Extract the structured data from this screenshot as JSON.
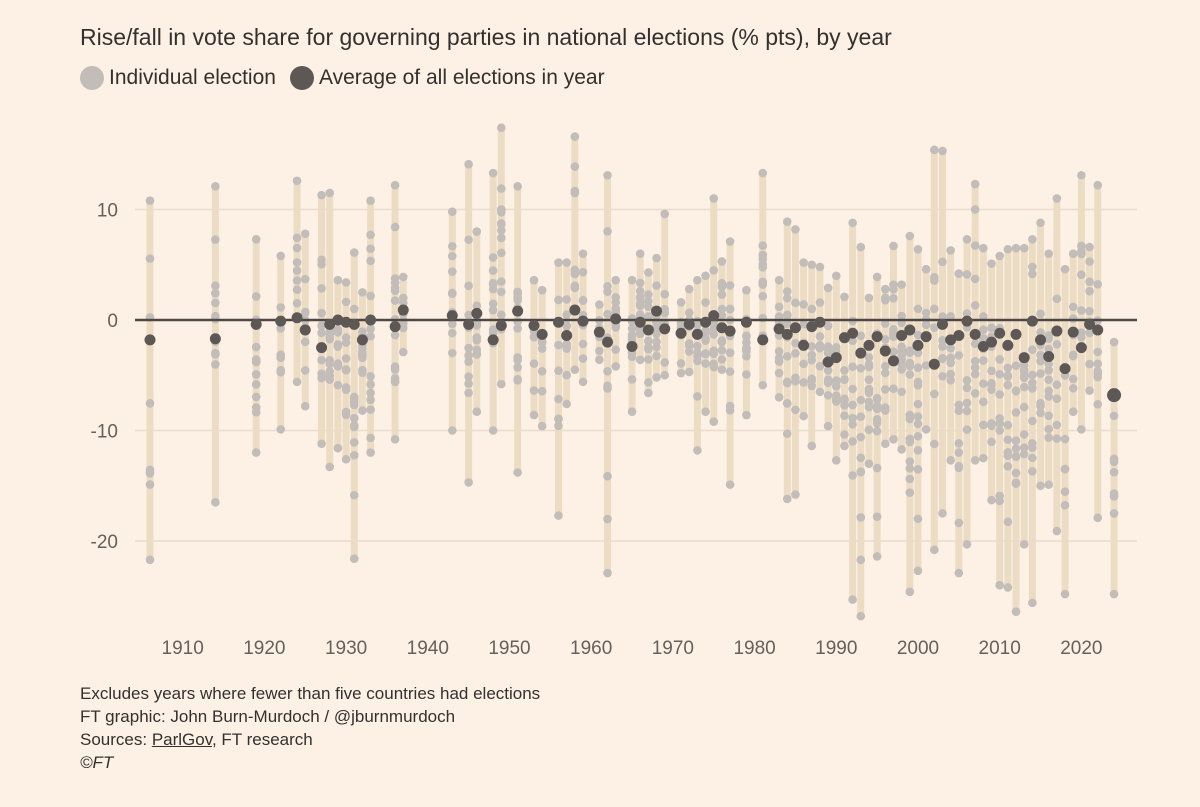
{
  "subtitle": "Rise/fall in vote share for governing parties in national elections (% pts), by year",
  "legend": {
    "individual": "Individual election",
    "average": "Average of all elections in year"
  },
  "notes": {
    "line1": "Excludes years where fewer than five countries had elections",
    "line2": "FT graphic: John Burn-Murdoch / @jburnmurdoch",
    "sources_prefix": "Sources: ",
    "sources_link": "ParlGov",
    "sources_suffix": ", FT research",
    "copyright": "©FT"
  },
  "colors": {
    "background": "#fdf1e6",
    "range_bar": "#eddcc4",
    "individual_dot": "#c2bdb8",
    "average_dot": "#5d5855",
    "zero_line": "#4d4845",
    "gridline": "#e8dccd",
    "text": "#33302e"
  },
  "chart_data": {
    "type": "scatter",
    "title": "",
    "subtitle": "Rise/fall in vote share for governing parties in national elections (% pts), by year",
    "xlabel": "",
    "ylabel": "",
    "xlim": [
      1903,
      2026
    ],
    "ylim": [
      -28,
      19
    ],
    "x_ticks": [
      1910,
      1920,
      1930,
      1940,
      1950,
      1960,
      1970,
      1980,
      1990,
      2000,
      2010,
      2020
    ],
    "y_ticks": [
      10,
      0,
      -10,
      -20
    ],
    "y_tick_labels": [
      "10",
      "0",
      "-10",
      "-20"
    ],
    "grid": "horizontal",
    "legend_position": "top-left",
    "series": [
      {
        "name": "Individual election",
        "marker": "light-dot",
        "role": "individual"
      },
      {
        "name": "Average of all elections in year",
        "marker": "dark-dot",
        "role": "average"
      }
    ],
    "years": [
      {
        "year": 1906,
        "min": -21.7,
        "max": 10.8,
        "avg": -1.8
      },
      {
        "year": 1914,
        "min": -16.5,
        "max": 12.1,
        "avg": -1.7
      },
      {
        "year": 1919,
        "min": -12.0,
        "max": 7.3,
        "avg": -0.4
      },
      {
        "year": 1922,
        "min": -9.9,
        "max": 5.8,
        "avg": -0.1
      },
      {
        "year": 1924,
        "min": -5.6,
        "max": 12.6,
        "avg": 0.2
      },
      {
        "year": 1925,
        "min": -7.8,
        "max": 7.8,
        "avg": -0.9
      },
      {
        "year": 1927,
        "min": -11.2,
        "max": 11.3,
        "avg": -2.5
      },
      {
        "year": 1928,
        "min": -13.3,
        "max": 11.5,
        "avg": -0.4
      },
      {
        "year": 1929,
        "min": -11.6,
        "max": 3.6,
        "avg": 0.0
      },
      {
        "year": 1930,
        "min": -12.6,
        "max": 3.4,
        "avg": -0.2
      },
      {
        "year": 1931,
        "min": -21.6,
        "max": 6.1,
        "avg": -0.4
      },
      {
        "year": 1932,
        "min": -8.2,
        "max": 2.5,
        "avg": -1.8
      },
      {
        "year": 1933,
        "min": -12.0,
        "max": 10.8,
        "avg": 0.0
      },
      {
        "year": 1936,
        "min": -10.8,
        "max": 12.2,
        "avg": -0.6
      },
      {
        "year": 1937,
        "min": -2.9,
        "max": 3.9,
        "avg": 0.9
      },
      {
        "year": 1943,
        "min": -10.0,
        "max": 9.8,
        "avg": 0.4
      },
      {
        "year": 1945,
        "min": -14.7,
        "max": 14.1,
        "avg": -0.4
      },
      {
        "year": 1946,
        "min": -8.3,
        "max": 8.0,
        "avg": 0.6
      },
      {
        "year": 1948,
        "min": -10.0,
        "max": 13.3,
        "avg": -1.8
      },
      {
        "year": 1949,
        "min": -5.8,
        "max": 17.4,
        "avg": -0.5
      },
      {
        "year": 1951,
        "min": -13.8,
        "max": 12.1,
        "avg": 0.8
      },
      {
        "year": 1953,
        "min": -8.6,
        "max": 3.6,
        "avg": -0.5
      },
      {
        "year": 1954,
        "min": -9.6,
        "max": 2.7,
        "avg": -1.3
      },
      {
        "year": 1956,
        "min": -17.7,
        "max": 5.2,
        "avg": -0.2
      },
      {
        "year": 1957,
        "min": -7.6,
        "max": 5.2,
        "avg": -1.4
      },
      {
        "year": 1958,
        "min": -4.5,
        "max": 16.6,
        "avg": 0.9
      },
      {
        "year": 1959,
        "min": -5.6,
        "max": 6.0,
        "avg": -0.1
      },
      {
        "year": 1961,
        "min": -3.6,
        "max": 1.4,
        "avg": -1.1
      },
      {
        "year": 1962,
        "min": -22.9,
        "max": 13.1,
        "avg": -2.0
      },
      {
        "year": 1963,
        "min": -4.2,
        "max": 3.6,
        "avg": 0.1
      },
      {
        "year": 1965,
        "min": -8.3,
        "max": 3.6,
        "avg": -2.4
      },
      {
        "year": 1966,
        "min": -3.6,
        "max": 6.0,
        "avg": -0.2
      },
      {
        "year": 1967,
        "min": -6.6,
        "max": 4.3,
        "avg": -0.9
      },
      {
        "year": 1968,
        "min": -5.2,
        "max": 5.6,
        "avg": 0.8
      },
      {
        "year": 1969,
        "min": -5.0,
        "max": 9.6,
        "avg": -0.8
      },
      {
        "year": 1971,
        "min": -4.8,
        "max": 1.6,
        "avg": -1.2
      },
      {
        "year": 1972,
        "min": -4.7,
        "max": 2.8,
        "avg": -0.4
      },
      {
        "year": 1973,
        "min": -11.8,
        "max": 3.6,
        "avg": -1.3
      },
      {
        "year": 1974,
        "min": -8.3,
        "max": 4.0,
        "avg": -0.2
      },
      {
        "year": 1975,
        "min": -9.2,
        "max": 11.0,
        "avg": 0.4
      },
      {
        "year": 1976,
        "min": -4.5,
        "max": 5.3,
        "avg": -0.7
      },
      {
        "year": 1977,
        "min": -14.9,
        "max": 7.1,
        "avg": -1.0
      },
      {
        "year": 1979,
        "min": -8.6,
        "max": 2.7,
        "avg": -0.2
      },
      {
        "year": 1981,
        "min": -5.9,
        "max": 13.3,
        "avg": -1.8
      },
      {
        "year": 1983,
        "min": -7.0,
        "max": 3.6,
        "avg": -0.8
      },
      {
        "year": 1984,
        "min": -16.2,
        "max": 8.9,
        "avg": -1.3
      },
      {
        "year": 1985,
        "min": -15.8,
        "max": 8.2,
        "avg": -0.7
      },
      {
        "year": 1986,
        "min": -8.7,
        "max": 5.2,
        "avg": -2.3
      },
      {
        "year": 1987,
        "min": -11.4,
        "max": 5.0,
        "avg": -0.6
      },
      {
        "year": 1988,
        "min": -6.5,
        "max": 4.8,
        "avg": -0.2
      },
      {
        "year": 1989,
        "min": -9.6,
        "max": 2.9,
        "avg": -3.8
      },
      {
        "year": 1990,
        "min": -12.7,
        "max": 4.0,
        "avg": -3.4
      },
      {
        "year": 1991,
        "min": -11.4,
        "max": 2.1,
        "avg": -1.6
      },
      {
        "year": 1992,
        "min": -25.3,
        "max": 8.8,
        "avg": -1.2
      },
      {
        "year": 1993,
        "min": -26.8,
        "max": 6.6,
        "avg": -3.0
      },
      {
        "year": 1994,
        "min": -13.0,
        "max": 2.0,
        "avg": -2.3
      },
      {
        "year": 1995,
        "min": -21.4,
        "max": 3.9,
        "avg": -1.5
      },
      {
        "year": 1996,
        "min": -11.2,
        "max": 2.8,
        "avg": -2.8
      },
      {
        "year": 1997,
        "min": -10.8,
        "max": 6.7,
        "avg": -3.7
      },
      {
        "year": 1998,
        "min": -11.7,
        "max": 3.2,
        "avg": -1.4
      },
      {
        "year": 1999,
        "min": -24.6,
        "max": 7.6,
        "avg": -0.9
      },
      {
        "year": 2000,
        "min": -22.7,
        "max": 6.4,
        "avg": -2.3
      },
      {
        "year": 2001,
        "min": -9.9,
        "max": 4.6,
        "avg": -1.5
      },
      {
        "year": 2002,
        "min": -20.8,
        "max": 15.4,
        "avg": -4.0
      },
      {
        "year": 2003,
        "min": -17.5,
        "max": 15.3,
        "avg": -0.4
      },
      {
        "year": 2004,
        "min": -12.7,
        "max": 6.3,
        "avg": -1.8
      },
      {
        "year": 2005,
        "min": -22.9,
        "max": 4.2,
        "avg": -1.4
      },
      {
        "year": 2006,
        "min": -20.3,
        "max": 7.3,
        "avg": -0.1
      },
      {
        "year": 2007,
        "min": -12.7,
        "max": 12.3,
        "avg": -1.3
      },
      {
        "year": 2008,
        "min": -12.5,
        "max": 6.5,
        "avg": -2.4
      },
      {
        "year": 2009,
        "min": -16.3,
        "max": 5.1,
        "avg": -2.0
      },
      {
        "year": 2010,
        "min": -24.0,
        "max": 5.8,
        "avg": -1.2
      },
      {
        "year": 2011,
        "min": -24.2,
        "max": 6.4,
        "avg": -2.3
      },
      {
        "year": 2012,
        "min": -26.4,
        "max": 6.5,
        "avg": -1.3
      },
      {
        "year": 2013,
        "min": -20.3,
        "max": 6.5,
        "avg": -3.4
      },
      {
        "year": 2014,
        "min": -25.6,
        "max": 7.3,
        "avg": -0.1
      },
      {
        "year": 2015,
        "min": -15.0,
        "max": 8.8,
        "avg": -1.8
      },
      {
        "year": 2016,
        "min": -14.9,
        "max": 6.0,
        "avg": -3.3
      },
      {
        "year": 2017,
        "min": -19.1,
        "max": 11.0,
        "avg": -1.0
      },
      {
        "year": 2018,
        "min": -24.8,
        "max": 4.6,
        "avg": -4.4
      },
      {
        "year": 2019,
        "min": -8.3,
        "max": 6.0,
        "avg": -1.1
      },
      {
        "year": 2020,
        "min": -9.9,
        "max": 13.1,
        "avg": -2.5
      },
      {
        "year": 2021,
        "min": -6.4,
        "max": 6.6,
        "avg": -0.4
      },
      {
        "year": 2022,
        "min": -17.9,
        "max": 12.2,
        "avg": -0.9
      },
      {
        "year": 2024,
        "min": -24.8,
        "max": -2.0,
        "avg": -6.8
      }
    ]
  }
}
